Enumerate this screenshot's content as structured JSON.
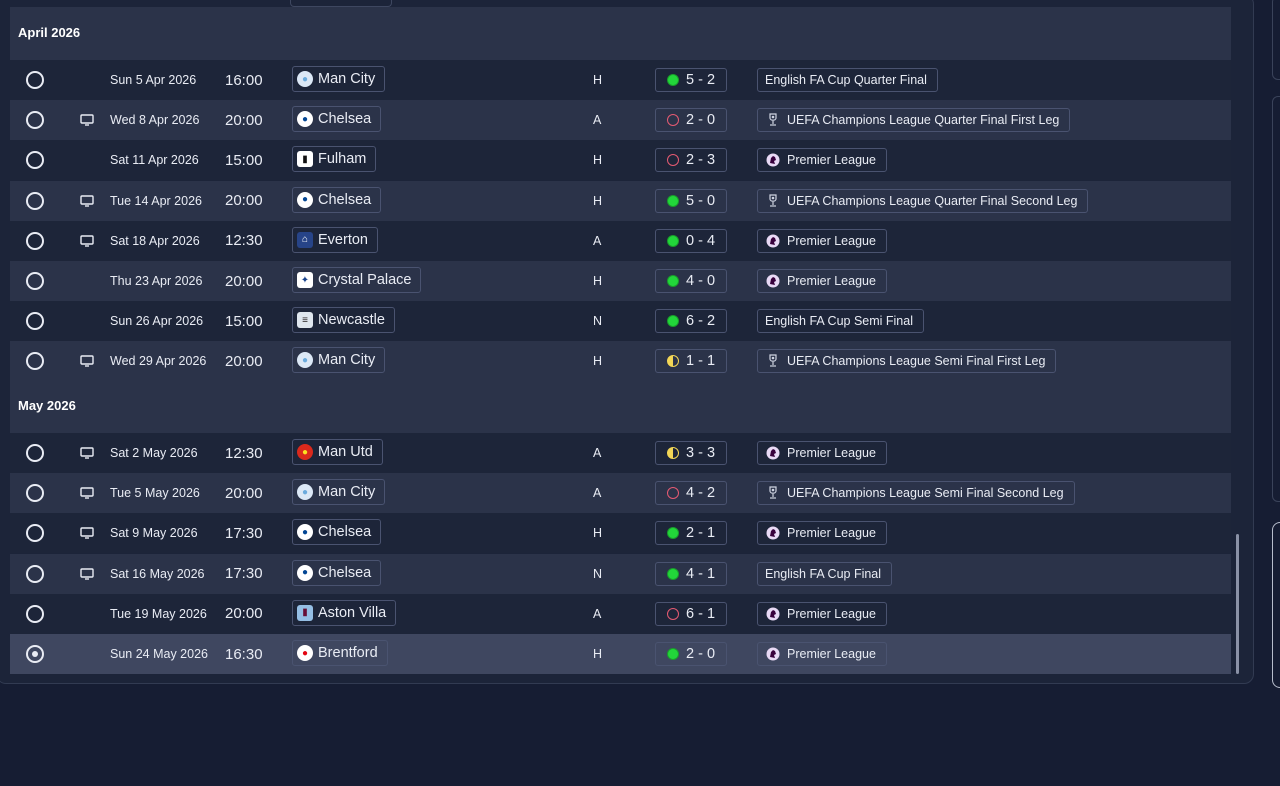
{
  "sections": [
    {
      "title": "April 2026"
    },
    {
      "title": "May 2026"
    }
  ],
  "fixtures": [
    {
      "date": "Sun 5 Apr 2026",
      "time": "16:00",
      "tv": false,
      "team": "Man City",
      "team_icon": "man-city-crest",
      "venue": "H",
      "result": "w",
      "score": "5 - 2",
      "competition": "English FA Cup Quarter Final",
      "comp_icon": "none"
    },
    {
      "date": "Wed 8 Apr 2026",
      "time": "20:00",
      "tv": true,
      "team": "Chelsea",
      "team_icon": "chelsea-crest",
      "venue": "A",
      "result": "l",
      "score": "2 - 0",
      "competition": "UEFA Champions League Quarter Final First Leg",
      "comp_icon": "ucl-trophy"
    },
    {
      "date": "Sat 11 Apr 2026",
      "time": "15:00",
      "tv": false,
      "team": "Fulham",
      "team_icon": "fulham-crest",
      "venue": "H",
      "result": "l",
      "score": "2 - 3",
      "competition": "Premier League",
      "comp_icon": "premier-league-lion"
    },
    {
      "date": "Tue 14 Apr 2026",
      "time": "20:00",
      "tv": true,
      "team": "Chelsea",
      "team_icon": "chelsea-crest",
      "venue": "H",
      "result": "w",
      "score": "5 - 0",
      "competition": "UEFA Champions League Quarter Final Second Leg",
      "comp_icon": "ucl-trophy"
    },
    {
      "date": "Sat 18 Apr 2026",
      "time": "12:30",
      "tv": true,
      "team": "Everton",
      "team_icon": "everton-crest",
      "venue": "A",
      "result": "w",
      "score": "0 - 4",
      "competition": "Premier League",
      "comp_icon": "premier-league-lion"
    },
    {
      "date": "Thu 23 Apr 2026",
      "time": "20:00",
      "tv": false,
      "team": "Crystal Palace",
      "team_icon": "crystal-palace-crest",
      "venue": "H",
      "result": "w",
      "score": "4 - 0",
      "competition": "Premier League",
      "comp_icon": "premier-league-lion"
    },
    {
      "date": "Sun 26 Apr 2026",
      "time": "15:00",
      "tv": false,
      "team": "Newcastle",
      "team_icon": "newcastle-crest",
      "venue": "N",
      "result": "w",
      "score": "6 - 2",
      "competition": "English FA Cup Semi Final",
      "comp_icon": "none"
    },
    {
      "date": "Wed 29 Apr 2026",
      "time": "20:00",
      "tv": true,
      "team": "Man City",
      "team_icon": "man-city-crest",
      "venue": "H",
      "result": "d",
      "score": "1 - 1",
      "competition": "UEFA Champions League Semi Final First Leg",
      "comp_icon": "ucl-trophy"
    },
    {
      "date": "Sat 2 May 2026",
      "time": "12:30",
      "tv": true,
      "team": "Man Utd",
      "team_icon": "man-utd-crest",
      "venue": "A",
      "result": "d",
      "score": "3 - 3",
      "competition": "Premier League",
      "comp_icon": "premier-league-lion"
    },
    {
      "date": "Tue 5 May 2026",
      "time": "20:00",
      "tv": true,
      "team": "Man City",
      "team_icon": "man-city-crest",
      "venue": "A",
      "result": "l",
      "score": "4 - 2",
      "competition": "UEFA Champions League Semi Final Second Leg",
      "comp_icon": "ucl-trophy"
    },
    {
      "date": "Sat 9 May 2026",
      "time": "17:30",
      "tv": true,
      "team": "Chelsea",
      "team_icon": "chelsea-crest",
      "venue": "H",
      "result": "w",
      "score": "2 - 1",
      "competition": "Premier League",
      "comp_icon": "premier-league-lion"
    },
    {
      "date": "Sat 16 May 2026",
      "time": "17:30",
      "tv": true,
      "team": "Chelsea",
      "team_icon": "chelsea-crest",
      "venue": "N",
      "result": "w",
      "score": "4 - 1",
      "competition": "English FA Cup Final",
      "comp_icon": "none"
    },
    {
      "date": "Tue 19 May 2026",
      "time": "20:00",
      "tv": false,
      "team": "Aston Villa",
      "team_icon": "aston-villa-crest",
      "venue": "A",
      "result": "l",
      "score": "6 - 1",
      "competition": "Premier League",
      "comp_icon": "premier-league-lion"
    },
    {
      "date": "Sun 24 May 2026",
      "time": "16:30",
      "tv": false,
      "team": "Brentford",
      "team_icon": "brentford-crest",
      "venue": "H",
      "result": "w",
      "score": "2 - 0",
      "competition": "Premier League",
      "comp_icon": "premier-league-lion",
      "selected": true
    }
  ],
  "colors": {
    "win": "#22d63a",
    "loss": "#e55a72",
    "draw": "#f2d656",
    "background": "#161d33"
  }
}
